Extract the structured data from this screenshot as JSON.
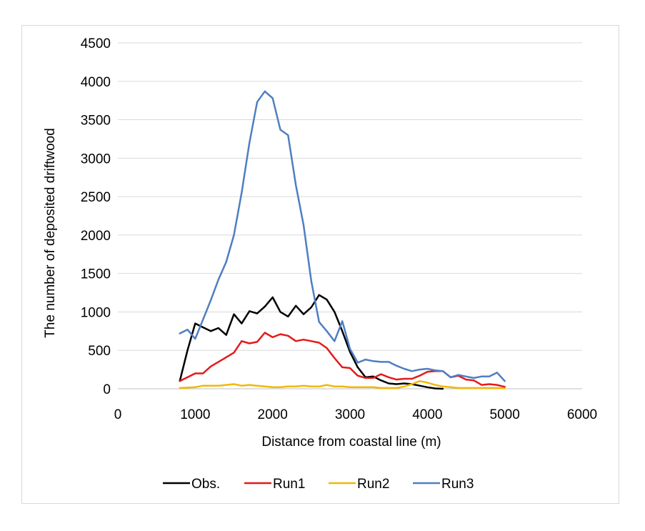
{
  "chart_data": {
    "type": "line",
    "title": "",
    "xlabel": "Distance from coastal line (m)",
    "ylabel": "The number of deposited driftwood",
    "xlim": [
      0,
      6000
    ],
    "ylim": [
      0,
      4500
    ],
    "xticks": [
      0,
      1000,
      2000,
      3000,
      4000,
      5000,
      6000
    ],
    "yticks": [
      0,
      500,
      1000,
      1500,
      2000,
      2500,
      3000,
      3500,
      4000,
      4500
    ],
    "xtick_labels": [
      "0",
      "1000",
      "2000",
      "3000",
      "4000",
      "5000",
      "6000"
    ],
    "ytick_labels": [
      "0",
      "500",
      "1000",
      "1500",
      "2000",
      "2500",
      "3000",
      "3500",
      "4000",
      "4500"
    ],
    "grid": "horizontal major gridlines",
    "legend_position": "bottom",
    "series": [
      {
        "name": "Obs.",
        "color": "#000000",
        "x": [
          800,
          900,
          1000,
          1100,
          1200,
          1300,
          1400,
          1500,
          1600,
          1700,
          1800,
          1900,
          2000,
          2100,
          2200,
          2300,
          2400,
          2500,
          2600,
          2700,
          2800,
          2900,
          3000,
          3100,
          3200,
          3300,
          3400,
          3500,
          3600,
          3700,
          3800,
          3900,
          4000,
          4100,
          4200
        ],
        "y": [
          100,
          500,
          850,
          800,
          750,
          790,
          700,
          970,
          850,
          1010,
          980,
          1070,
          1190,
          1000,
          940,
          1080,
          970,
          1060,
          1220,
          1160,
          1000,
          750,
          480,
          280,
          150,
          160,
          110,
          70,
          60,
          70,
          60,
          40,
          20,
          5,
          0
        ]
      },
      {
        "name": "Run1",
        "color": "#e41a1c",
        "x": [
          800,
          900,
          1000,
          1100,
          1200,
          1300,
          1400,
          1500,
          1600,
          1700,
          1800,
          1900,
          2000,
          2100,
          2200,
          2300,
          2400,
          2500,
          2600,
          2700,
          2800,
          2900,
          3000,
          3100,
          3200,
          3300,
          3400,
          3500,
          3600,
          3700,
          3800,
          3900,
          4000,
          4100,
          4200,
          4300,
          4400,
          4500,
          4600,
          4700,
          4800,
          4900,
          5000
        ],
        "y": [
          100,
          150,
          200,
          200,
          290,
          350,
          410,
          470,
          620,
          590,
          610,
          730,
          670,
          710,
          690,
          620,
          640,
          620,
          600,
          530,
          400,
          280,
          270,
          170,
          140,
          140,
          190,
          150,
          120,
          130,
          130,
          170,
          220,
          230,
          230,
          150,
          170,
          120,
          110,
          50,
          60,
          50,
          25
        ]
      },
      {
        "name": "Run2",
        "color": "#f2b807",
        "x": [
          800,
          900,
          1000,
          1100,
          1200,
          1300,
          1400,
          1500,
          1600,
          1700,
          1800,
          1900,
          2000,
          2100,
          2200,
          2300,
          2400,
          2500,
          2600,
          2700,
          2800,
          2900,
          3000,
          3100,
          3200,
          3300,
          3400,
          3500,
          3600,
          3700,
          3800,
          3900,
          4000,
          4100,
          4200,
          4300,
          4400,
          4500,
          4600,
          4700,
          4800,
          4900,
          5000
        ],
        "y": [
          10,
          15,
          20,
          40,
          40,
          40,
          50,
          60,
          40,
          50,
          40,
          30,
          20,
          20,
          30,
          30,
          40,
          30,
          30,
          50,
          30,
          30,
          20,
          20,
          20,
          20,
          10,
          10,
          10,
          30,
          60,
          100,
          80,
          50,
          30,
          20,
          10,
          10,
          10,
          10,
          10,
          10,
          5
        ]
      },
      {
        "name": "Run3",
        "color": "#4f7ec1",
        "x": [
          800,
          900,
          1000,
          1100,
          1200,
          1300,
          1400,
          1500,
          1600,
          1700,
          1800,
          1900,
          2000,
          2100,
          2200,
          2300,
          2400,
          2500,
          2600,
          2700,
          2800,
          2900,
          3000,
          3100,
          3200,
          3300,
          3400,
          3500,
          3600,
          3700,
          3800,
          3900,
          4000,
          4100,
          4200,
          4300,
          4400,
          4500,
          4600,
          4700,
          4800,
          4900,
          5000
        ],
        "y": [
          720,
          770,
          650,
          900,
          1150,
          1420,
          1650,
          2000,
          2550,
          3200,
          3730,
          3870,
          3780,
          3370,
          3300,
          2650,
          2130,
          1400,
          870,
          750,
          620,
          880,
          520,
          340,
          380,
          360,
          350,
          350,
          300,
          260,
          230,
          250,
          260,
          240,
          230,
          150,
          180,
          160,
          140,
          160,
          160,
          210,
          100
        ]
      }
    ]
  }
}
